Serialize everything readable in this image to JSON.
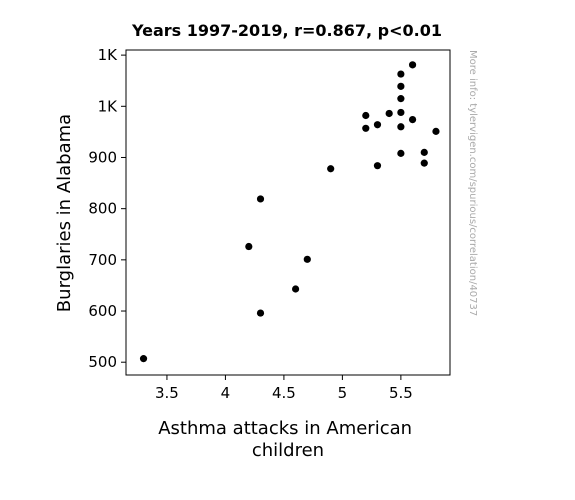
{
  "chart_data": {
    "type": "scatter",
    "title": "Years 1997-2019, r=0.867, p<0.01",
    "xlabel_lines": [
      "Asthma attacks in American",
      "children"
    ],
    "ylabel": "Burglaries in Alabama",
    "xlim": [
      3.15,
      5.92
    ],
    "ylim": [
      475,
      1110
    ],
    "x_ticks": [
      {
        "value": 3.5,
        "label": "3.5"
      },
      {
        "value": 4.0,
        "label": "4"
      },
      {
        "value": 4.5,
        "label": "4.5"
      },
      {
        "value": 5.0,
        "label": "5"
      },
      {
        "value": 5.5,
        "label": "5.5"
      }
    ],
    "y_ticks": [
      {
        "value": 500,
        "label": "500"
      },
      {
        "value": 600,
        "label": "600"
      },
      {
        "value": 700,
        "label": "700"
      },
      {
        "value": 800,
        "label": "800"
      },
      {
        "value": 900,
        "label": "900"
      },
      {
        "value": 1000,
        "label": "1K"
      },
      {
        "value": 1100,
        "label": "1K"
      }
    ],
    "points": [
      {
        "x": 3.3,
        "y": 507
      },
      {
        "x": 4.2,
        "y": 726
      },
      {
        "x": 4.3,
        "y": 819
      },
      {
        "x": 4.3,
        "y": 596
      },
      {
        "x": 4.6,
        "y": 643
      },
      {
        "x": 4.7,
        "y": 701
      },
      {
        "x": 4.9,
        "y": 878
      },
      {
        "x": 5.2,
        "y": 982
      },
      {
        "x": 5.2,
        "y": 957
      },
      {
        "x": 5.3,
        "y": 964
      },
      {
        "x": 5.3,
        "y": 884
      },
      {
        "x": 5.4,
        "y": 986
      },
      {
        "x": 5.5,
        "y": 1063
      },
      {
        "x": 5.5,
        "y": 1039
      },
      {
        "x": 5.5,
        "y": 1015
      },
      {
        "x": 5.5,
        "y": 988
      },
      {
        "x": 5.5,
        "y": 960
      },
      {
        "x": 5.5,
        "y": 908
      },
      {
        "x": 5.6,
        "y": 1081
      },
      {
        "x": 5.6,
        "y": 974
      },
      {
        "x": 5.7,
        "y": 910
      },
      {
        "x": 5.7,
        "y": 889
      },
      {
        "x": 5.8,
        "y": 951
      }
    ],
    "point_color": "#000000",
    "grid": false,
    "legend": "none"
  },
  "watermark": "More info: tylervigen.com/spurious/correlation/40737"
}
